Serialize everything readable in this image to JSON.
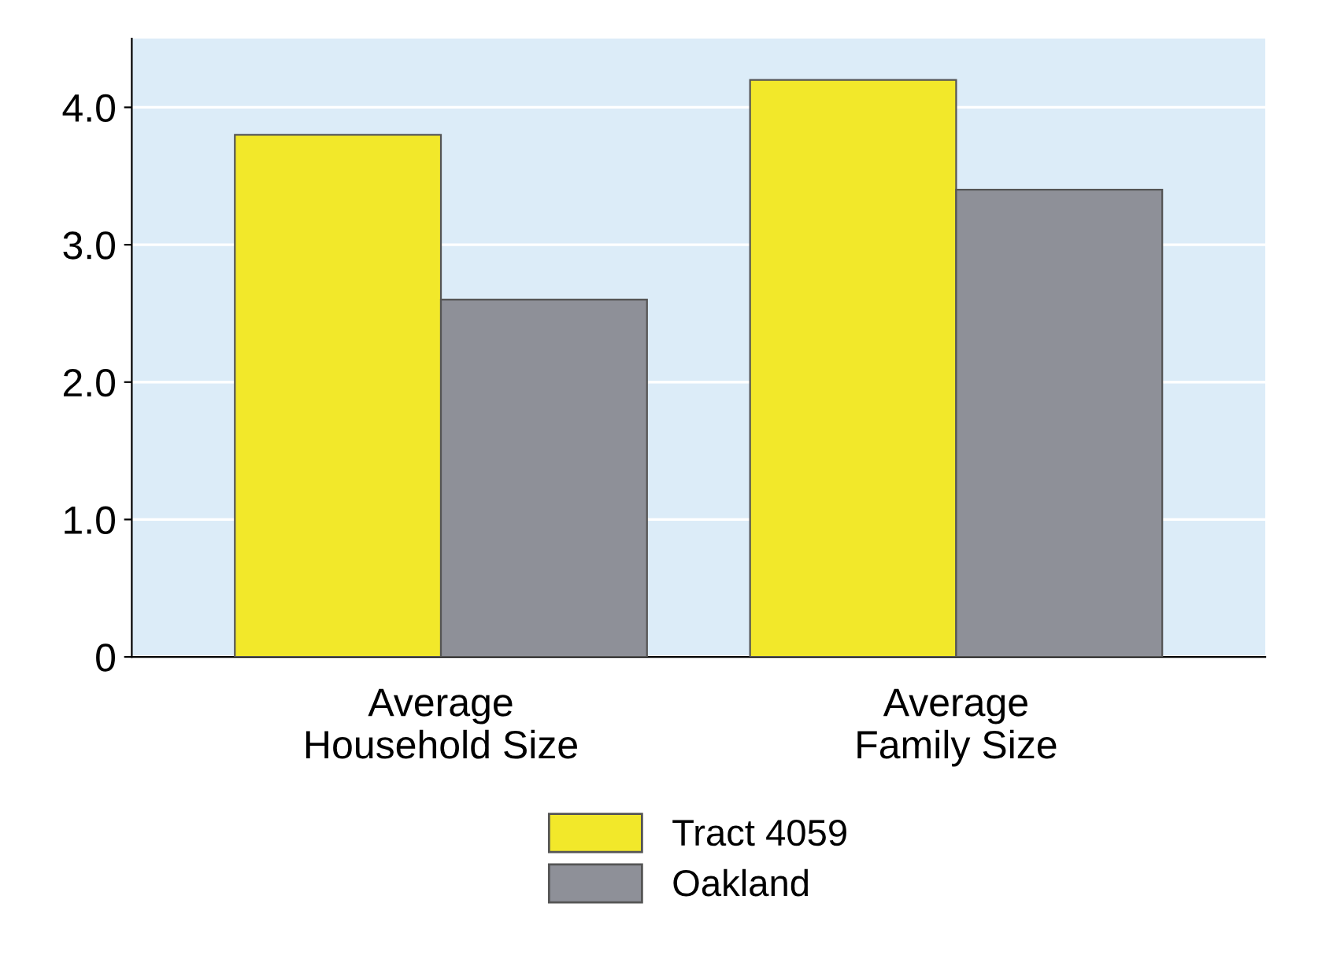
{
  "chart_data": {
    "type": "bar",
    "categories": [
      "Average\nHousehold Size",
      "Average\nFamily Size"
    ],
    "series": [
      {
        "name": "Tract 4059",
        "color": "#f2e82a",
        "values": [
          3.8,
          4.2
        ]
      },
      {
        "name": "Oakland",
        "color": "#8e9098",
        "values": [
          2.6,
          3.4
        ]
      }
    ],
    "ylim": [
      0,
      4.5
    ],
    "yticks": [
      0,
      {
        "value": 1,
        "label": "1.0"
      },
      {
        "value": 2,
        "label": "2.0"
      },
      {
        "value": 3,
        "label": "3.0"
      },
      {
        "value": 4,
        "label": "4.0"
      }
    ],
    "grid": "y",
    "legend": "bottom"
  }
}
